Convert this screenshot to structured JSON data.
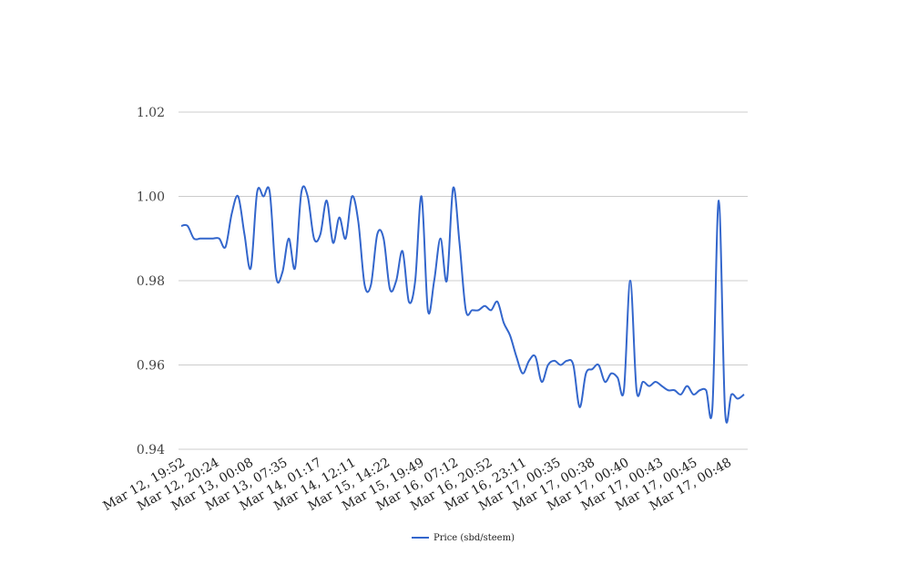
{
  "chart_data": {
    "type": "line",
    "title": "",
    "xlabel": "",
    "ylabel": "",
    "ylim": [
      0.94,
      1.02
    ],
    "yticks": [
      "0.94",
      "0.96",
      "0.98",
      "1.00",
      "1.02"
    ],
    "grid": true,
    "legend_position": "bottom",
    "line_color": "#3366CC",
    "x_tick_labels": [
      "Mar 12, 19:52",
      "Mar 12, 20:24",
      "Mar 13, 00:08",
      "Mar 13, 07:35",
      "Mar 14, 01:17",
      "Mar 14, 12:11",
      "Mar 15, 14:22",
      "Mar 15, 19:49",
      "Mar 16, 07:12",
      "Mar 16, 20:52",
      "Mar 16, 23:11",
      "Mar 17, 00:35",
      "Mar 17, 00:38",
      "Mar 17, 00:40",
      "Mar 17, 00:43",
      "Mar 17, 00:45",
      "Mar 17, 00:48"
    ],
    "series": [
      {
        "name": "Price (sbd/steem)",
        "values": [
          0.993,
          0.993,
          0.99,
          0.99,
          0.99,
          0.99,
          0.99,
          0.988,
          0.996,
          1.0,
          0.991,
          0.983,
          1.001,
          1.0,
          1.001,
          0.981,
          0.982,
          0.99,
          0.983,
          1.001,
          1.0,
          0.99,
          0.991,
          0.999,
          0.989,
          0.995,
          0.99,
          1.0,
          0.994,
          0.979,
          0.979,
          0.991,
          0.99,
          0.978,
          0.98,
          0.987,
          0.975,
          0.98,
          1.0,
          0.973,
          0.98,
          0.99,
          0.98,
          1.002,
          0.989,
          0.973,
          0.973,
          0.973,
          0.974,
          0.973,
          0.975,
          0.97,
          0.967,
          0.962,
          0.958,
          0.961,
          0.962,
          0.956,
          0.96,
          0.961,
          0.96,
          0.961,
          0.96,
          0.95,
          0.958,
          0.959,
          0.96,
          0.956,
          0.958,
          0.957,
          0.954,
          0.98,
          0.954,
          0.956,
          0.955,
          0.956,
          0.955,
          0.954,
          0.954,
          0.953,
          0.955,
          0.953,
          0.954,
          0.954,
          0.95,
          0.999,
          0.949,
          0.953,
          0.952,
          0.953
        ]
      }
    ]
  }
}
